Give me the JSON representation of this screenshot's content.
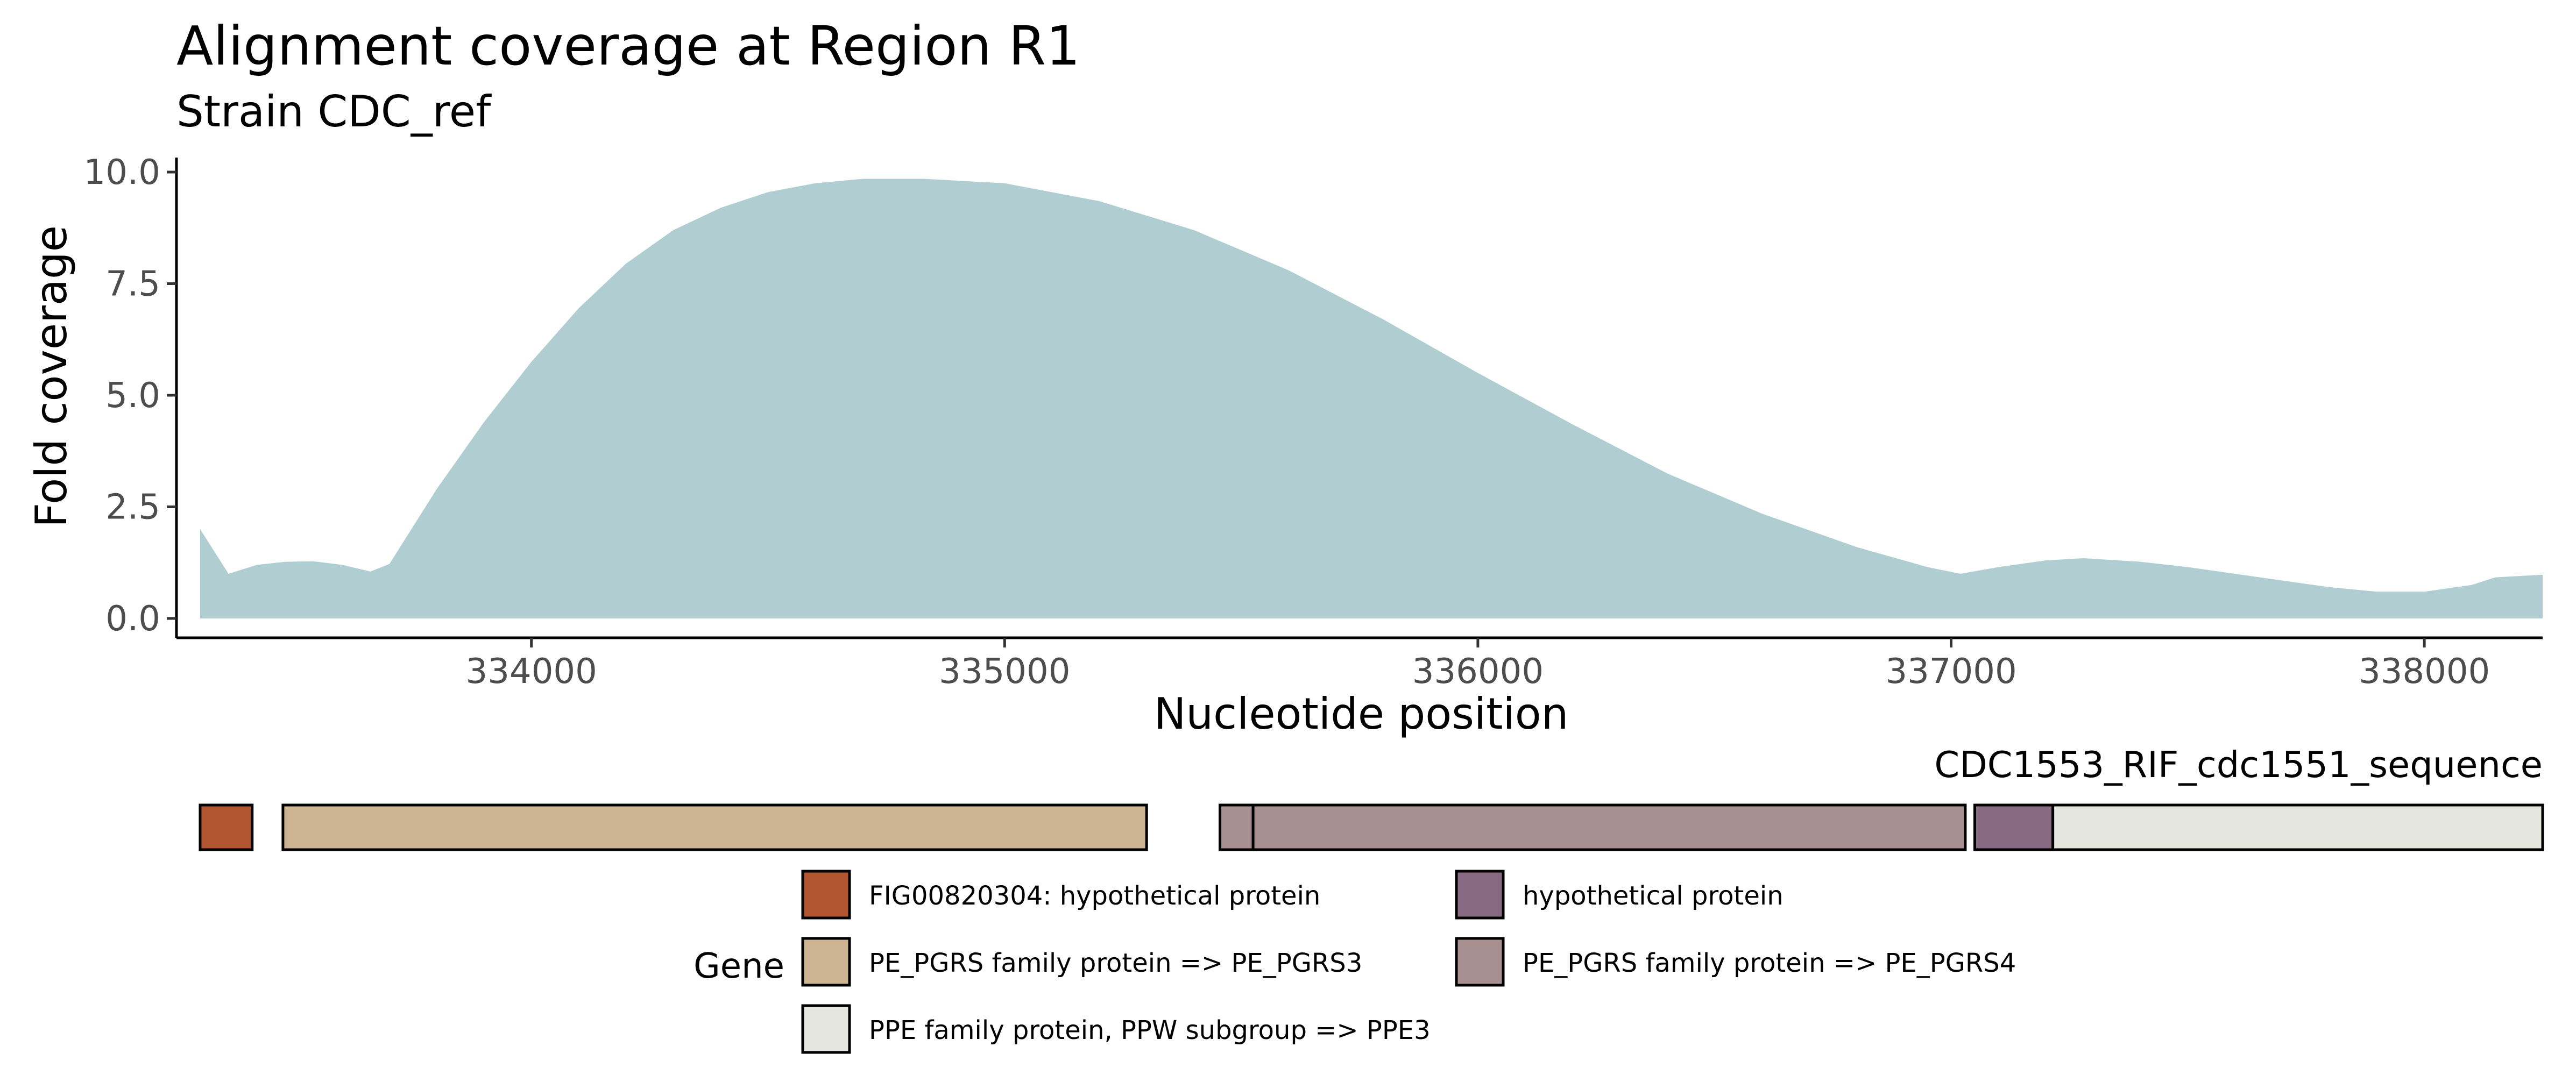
{
  "chart_data": {
    "type": "area",
    "title": "Alignment coverage at Region R1",
    "subtitle": "Strain CDC_ref",
    "xlabel": "Nucleotide position",
    "ylabel": "Fold coverage",
    "xlim": [
      333250,
      338250
    ],
    "ylim": [
      0,
      10
    ],
    "x_ticks": [
      334000,
      335000,
      336000,
      337000,
      338000
    ],
    "x_tick_labels": [
      "334000",
      "335000",
      "336000",
      "337000",
      "338000"
    ],
    "y_ticks": [
      0,
      2.5,
      5,
      7.5,
      10
    ],
    "y_tick_labels": [
      "0.0",
      "2.5",
      "5.0",
      "7.5",
      "10.0"
    ],
    "grid": false,
    "fill_color": "#b0ced1",
    "x": [
      333300,
      333360,
      333420,
      333480,
      333540,
      333600,
      333660,
      333700,
      333800,
      333900,
      334000,
      334100,
      334200,
      334300,
      334400,
      334500,
      334600,
      334700,
      334830,
      335000,
      335200,
      335400,
      335600,
      335800,
      336000,
      336200,
      336400,
      336600,
      336800,
      336950,
      337020,
      337100,
      337200,
      337280,
      337400,
      337500,
      337600,
      337700,
      337800,
      337900,
      338000,
      338100,
      338150,
      338250
    ],
    "values": [
      2.0,
      1.0,
      1.2,
      1.27,
      1.28,
      1.2,
      1.05,
      1.22,
      2.9,
      4.4,
      5.75,
      6.95,
      7.95,
      8.7,
      9.2,
      9.55,
      9.75,
      9.85,
      9.85,
      9.75,
      9.35,
      8.7,
      7.8,
      6.7,
      5.5,
      4.35,
      3.25,
      2.35,
      1.6,
      1.15,
      1.0,
      1.15,
      1.3,
      1.35,
      1.27,
      1.15,
      1.0,
      0.85,
      0.7,
      0.6,
      0.6,
      0.75,
      0.92,
      0.98
    ]
  },
  "gene_track": {
    "track_label": "CDC1553_RIF_cdc1551_sequence",
    "features": [
      {
        "gene": "FIG00820304: hypothetical protein",
        "start": 333300,
        "end": 333410
      },
      {
        "gene": "PE_PGRS family protein => PE_PGRS3",
        "start": 333475,
        "end": 335300
      },
      {
        "gene": "PE_PGRS family protein => PE_PGRS4",
        "start": 335455,
        "end": 335525
      },
      {
        "gene": "PE_PGRS family protein => PE_PGRS4",
        "start": 335525,
        "end": 337030
      },
      {
        "gene": "hypothetical protein",
        "start": 337050,
        "end": 337215
      },
      {
        "gene": "PPE family protein, PPW subgroup => PPE3",
        "start": 337215,
        "end": 338250
      }
    ]
  },
  "legend": {
    "title": "Gene",
    "entries": [
      {
        "label": "FIG00820304: hypothetical protein",
        "color": "#b0552f"
      },
      {
        "label": "hypothetical protein",
        "color": "#876a82"
      },
      {
        "label": "PE_PGRS family protein => PE_PGRS3",
        "color": "#cdb594"
      },
      {
        "label": "PE_PGRS family protein => PE_PGRS4",
        "color": "#a88f90"
      },
      {
        "label": "PPE family protein, PPW subgroup => PPE3",
        "color": "#e4e6dd"
      }
    ]
  }
}
